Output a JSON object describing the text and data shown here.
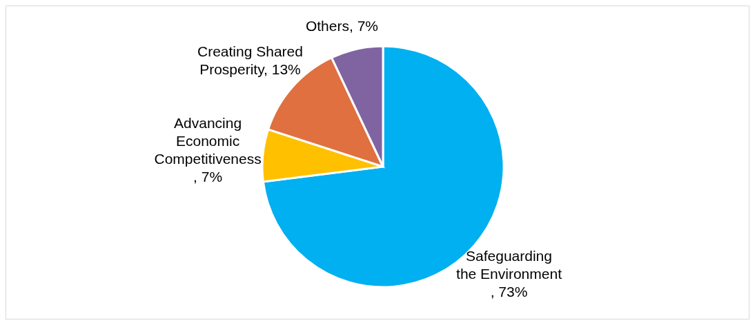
{
  "chart_data": {
    "type": "pie",
    "categories": [
      "Safeguarding the Environment",
      "Advancing Economic Competitiveness",
      "Creating Shared Prosperity",
      "Others"
    ],
    "values": [
      73,
      7,
      13,
      7
    ],
    "colors": [
      "#00b0f0",
      "#ffc000",
      "#e07040",
      "#8064a2"
    ],
    "value_labels": [
      ", 73%",
      ", 7%",
      ", 13%",
      ", 7%"
    ]
  }
}
